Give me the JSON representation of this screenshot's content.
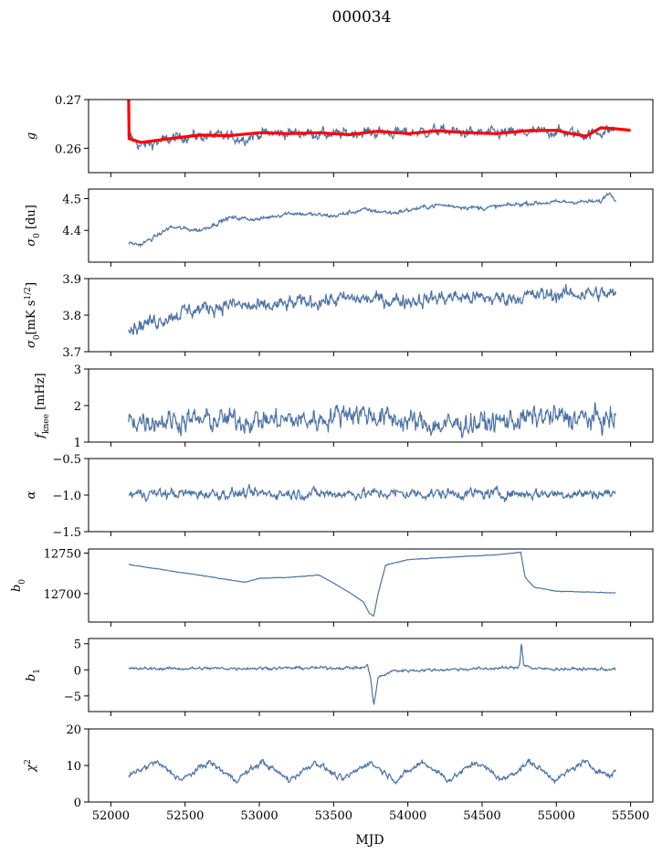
{
  "figure": {
    "title": "000034",
    "xlabel": "MJD"
  },
  "style": {
    "series_color": "#4c72a4",
    "fit_color": "#ff0000",
    "axis_color": "#000000"
  },
  "chart_data": [
    {
      "type": "line",
      "id": "g",
      "ylabel": "g",
      "ylim": [
        0.255,
        0.27
      ],
      "yticks": [
        0.26,
        0.27
      ],
      "ytick_labels": [
        "0.26",
        "0.27"
      ],
      "anchors": [
        [
          52120,
          0.2625
        ],
        [
          52200,
          0.2605
        ],
        [
          52300,
          0.2612
        ],
        [
          52500,
          0.2625
        ],
        [
          52700,
          0.2625
        ],
        [
          52900,
          0.262
        ],
        [
          53000,
          0.263
        ],
        [
          53300,
          0.2632
        ],
        [
          53500,
          0.2628
        ],
        [
          53700,
          0.2633
        ],
        [
          54000,
          0.2632
        ],
        [
          54200,
          0.2636
        ],
        [
          54500,
          0.263
        ],
        [
          54800,
          0.2632
        ],
        [
          55000,
          0.2635
        ],
        [
          55200,
          0.2628
        ],
        [
          55400,
          0.264
        ]
      ],
      "noise": 0.0014,
      "fit": [
        [
          52120,
          0.27
        ],
        [
          52123,
          0.262
        ],
        [
          52200,
          0.2612
        ],
        [
          52400,
          0.262
        ],
        [
          52600,
          0.2627
        ],
        [
          52800,
          0.2626
        ],
        [
          53000,
          0.2632
        ],
        [
          53200,
          0.263
        ],
        [
          53400,
          0.2632
        ],
        [
          53600,
          0.2628
        ],
        [
          53800,
          0.2635
        ],
        [
          54000,
          0.263
        ],
        [
          54200,
          0.2636
        ],
        [
          54400,
          0.2632
        ],
        [
          54600,
          0.263
        ],
        [
          54800,
          0.2636
        ],
        [
          55000,
          0.2637
        ],
        [
          55100,
          0.263
        ],
        [
          55200,
          0.2625
        ],
        [
          55300,
          0.2642
        ],
        [
          55400,
          0.264
        ],
        [
          55500,
          0.2637
        ]
      ]
    },
    {
      "type": "line",
      "id": "sigma0_du",
      "ylabel": "σ0 [du]",
      "ylim": [
        4.3,
        4.53
      ],
      "yticks": [
        4.4,
        4.5
      ],
      "ytick_labels": [
        "4.4",
        "4.5"
      ],
      "anchors": [
        [
          52120,
          4.36
        ],
        [
          52200,
          4.355
        ],
        [
          52300,
          4.38
        ],
        [
          52400,
          4.41
        ],
        [
          52600,
          4.4
        ],
        [
          52800,
          4.44
        ],
        [
          53000,
          4.435
        ],
        [
          53200,
          4.455
        ],
        [
          53500,
          4.445
        ],
        [
          53700,
          4.465
        ],
        [
          53900,
          4.455
        ],
        [
          54200,
          4.48
        ],
        [
          54500,
          4.47
        ],
        [
          54800,
          4.485
        ],
        [
          55100,
          4.49
        ],
        [
          55300,
          4.49
        ],
        [
          55350,
          4.52
        ],
        [
          55400,
          4.5
        ]
      ],
      "noise": 0.008
    },
    {
      "type": "line",
      "id": "sigma0_mks",
      "ylabel": "σ0[mK s1/2]",
      "ylim": [
        3.7,
        3.9
      ],
      "yticks": [
        3.7,
        3.8,
        3.9
      ],
      "ytick_labels": [
        "3.7",
        "3.8",
        "3.9"
      ],
      "anchors": [
        [
          52120,
          3.765
        ],
        [
          52300,
          3.785
        ],
        [
          52500,
          3.81
        ],
        [
          52800,
          3.83
        ],
        [
          53000,
          3.82
        ],
        [
          53300,
          3.835
        ],
        [
          53600,
          3.845
        ],
        [
          54000,
          3.84
        ],
        [
          54300,
          3.85
        ],
        [
          54600,
          3.845
        ],
        [
          54900,
          3.855
        ],
        [
          55200,
          3.86
        ],
        [
          55400,
          3.855
        ]
      ],
      "noise": 0.025
    },
    {
      "type": "line",
      "id": "fknee",
      "ylabel": "fknee [mHz]",
      "ylim": [
        1,
        3
      ],
      "yticks": [
        1,
        2,
        3
      ],
      "ytick_labels": [
        "1",
        "2",
        "3"
      ],
      "anchors": [
        [
          52120,
          1.6
        ],
        [
          53400,
          1.6
        ],
        [
          53600,
          1.85
        ],
        [
          53800,
          1.7
        ],
        [
          54200,
          1.45
        ],
        [
          54600,
          1.55
        ],
        [
          54900,
          1.7
        ],
        [
          55400,
          1.6
        ]
      ],
      "noise": 0.38
    },
    {
      "type": "line",
      "id": "alpha",
      "ylabel": "α",
      "ylim": [
        -1.5,
        -0.5
      ],
      "yticks": [
        -1.5,
        -1.0,
        -0.5
      ],
      "ytick_labels": [
        "−1.5",
        "−1.0",
        "−0.5"
      ],
      "anchors": [
        [
          52120,
          -0.98
        ],
        [
          55400,
          -0.98
        ]
      ],
      "noise": 0.09
    },
    {
      "type": "line",
      "id": "b0",
      "ylabel": "b0",
      "ylim": [
        12665,
        12755
      ],
      "yticks": [
        12700,
        12750
      ],
      "ytick_labels": [
        "12700",
        "12750"
      ],
      "anchors": [
        [
          52120,
          12736
        ],
        [
          52400,
          12728
        ],
        [
          52700,
          12720
        ],
        [
          52900,
          12714
        ],
        [
          53000,
          12719
        ],
        [
          53200,
          12720
        ],
        [
          53400,
          12723
        ],
        [
          53500,
          12713
        ],
        [
          53600,
          12702
        ],
        [
          53700,
          12690
        ],
        [
          53740,
          12676
        ],
        [
          53770,
          12672
        ],
        [
          53800,
          12700
        ],
        [
          53850,
          12735
        ],
        [
          54000,
          12742
        ],
        [
          54300,
          12745
        ],
        [
          54600,
          12748
        ],
        [
          54760,
          12751
        ],
        [
          54790,
          12720
        ],
        [
          54850,
          12708
        ],
        [
          55000,
          12703
        ],
        [
          55400,
          12701
        ]
      ],
      "noise": 0.4
    },
    {
      "type": "line",
      "id": "b1",
      "ylabel": "b1",
      "ylim": [
        -8,
        6
      ],
      "yticks": [
        -5,
        0,
        5
      ],
      "ytick_labels": [
        "−5",
        "0",
        "5"
      ],
      "anchors": [
        [
          52120,
          0.2
        ],
        [
          53700,
          0.4
        ],
        [
          53730,
          0.8
        ],
        [
          53750,
          -1.5
        ],
        [
          53770,
          -7.0
        ],
        [
          53800,
          -1.5
        ],
        [
          53900,
          -0.2
        ],
        [
          54740,
          0.4
        ],
        [
          54755,
          1.5
        ],
        [
          54765,
          5.5
        ],
        [
          54780,
          1.0
        ],
        [
          54850,
          0.2
        ],
        [
          55400,
          0.1
        ]
      ],
      "noise": 0.35
    },
    {
      "type": "line",
      "id": "chi2",
      "ylabel": "χ2",
      "ylim": [
        0,
        20
      ],
      "yticks": [
        0,
        10,
        20
      ],
      "ytick_labels": [
        "0",
        "10",
        "20"
      ],
      "anchors": [
        [
          52120,
          7
        ],
        [
          52300,
          11
        ],
        [
          52480,
          6
        ],
        [
          52660,
          11
        ],
        [
          52840,
          6
        ],
        [
          53020,
          11
        ],
        [
          53200,
          6
        ],
        [
          53380,
          11
        ],
        [
          53560,
          6
        ],
        [
          53740,
          11
        ],
        [
          53920,
          6
        ],
        [
          54100,
          11
        ],
        [
          54280,
          6
        ],
        [
          54460,
          11
        ],
        [
          54640,
          6
        ],
        [
          54820,
          11
        ],
        [
          55000,
          6
        ],
        [
          55180,
          11
        ],
        [
          55360,
          7
        ],
        [
          55400,
          9
        ]
      ],
      "noise": 1.0
    }
  ],
  "xaxis": {
    "xlim": [
      51850,
      55650
    ],
    "xticks": [
      52000,
      52500,
      53000,
      53500,
      54000,
      54500,
      55000,
      55500
    ],
    "xtick_labels": [
      "52000",
      "52500",
      "53000",
      "53500",
      "54000",
      "54500",
      "55000",
      "55500"
    ]
  }
}
